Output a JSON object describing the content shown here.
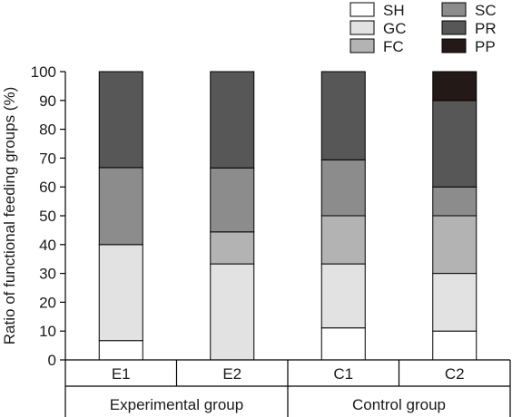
{
  "chart_data": {
    "type": "bar",
    "stacked": true,
    "categories": [
      "E1",
      "E2",
      "C1",
      "C2"
    ],
    "groups": [
      {
        "label": "Experimental group",
        "categories": [
          "E1",
          "E2"
        ]
      },
      {
        "label": "Control group",
        "categories": [
          "C1",
          "C2"
        ]
      }
    ],
    "ylabel": "Ratio of functional feeding groups (%)",
    "ylim": [
      0,
      100
    ],
    "yticks": [
      0,
      10,
      20,
      30,
      40,
      50,
      60,
      70,
      80,
      90,
      100
    ],
    "grid": false,
    "legend_position": "top-right",
    "series": [
      {
        "name": "SH",
        "color": "#ffffff",
        "values": [
          6.7,
          0,
          11.1,
          10
        ]
      },
      {
        "name": "GC",
        "color": "#e2e2e2",
        "values": [
          33.3,
          33.3,
          22.2,
          20
        ]
      },
      {
        "name": "FC",
        "color": "#b3b3b3",
        "values": [
          0,
          11.1,
          16.7,
          20
        ]
      },
      {
        "name": "SC",
        "color": "#8c8c8c",
        "values": [
          26.7,
          22.2,
          19.4,
          10
        ]
      },
      {
        "name": "PR",
        "color": "#575757",
        "values": [
          33.3,
          33.4,
          30.6,
          30
        ]
      },
      {
        "name": "PP",
        "color": "#231a17",
        "values": [
          0,
          0,
          0,
          10
        ]
      }
    ],
    "legend_order": [
      "SH",
      "SC",
      "GC",
      "PR",
      "FC",
      "PP"
    ]
  }
}
